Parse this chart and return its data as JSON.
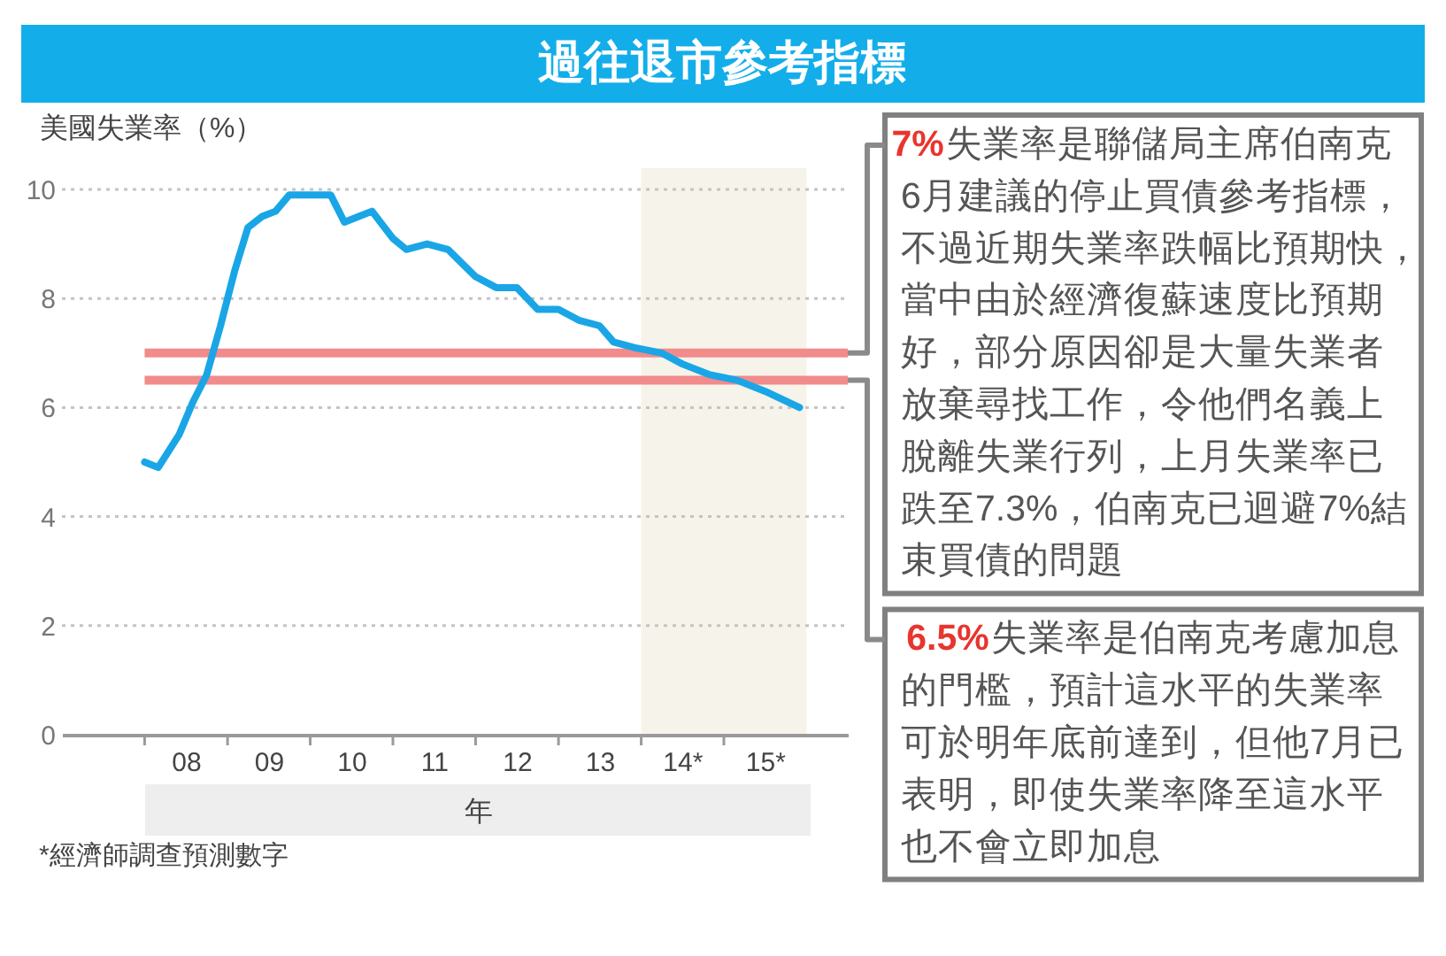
{
  "chart_data": {
    "type": "line",
    "title": "過往退市參考指標",
    "ylabel": "美國失業率（%）",
    "xlabel": "年",
    "x": [
      "2008-01",
      "2008-03",
      "2008-06",
      "2008-08",
      "2008-10",
      "2008-12",
      "2009-02",
      "2009-04",
      "2009-06",
      "2009-08",
      "2009-10",
      "2009-12",
      "2010-04",
      "2010-06",
      "2010-08",
      "2010-10",
      "2011-01",
      "2011-03",
      "2011-06",
      "2011-09",
      "2012-01",
      "2012-04",
      "2012-07",
      "2012-10",
      "2013-01",
      "2013-04",
      "2013-07",
      "2013-09",
      "2013-12",
      "2014-04",
      "2014-07",
      "2014-11",
      "2015-03",
      "2015-07",
      "2015-12"
    ],
    "values": [
      5.0,
      4.9,
      5.5,
      6.1,
      6.6,
      7.5,
      8.5,
      9.3,
      9.5,
      9.6,
      9.9,
      9.9,
      9.9,
      9.4,
      9.5,
      9.6,
      9.1,
      8.9,
      9.0,
      8.9,
      8.4,
      8.2,
      8.2,
      7.8,
      7.8,
      7.6,
      7.5,
      7.2,
      7.1,
      7.0,
      6.8,
      6.6,
      6.5,
      6.3,
      6.0
    ],
    "color": "#1aa6e6",
    "line_style": "solid",
    "xlim": [
      "2007-01",
      "2016-07"
    ],
    "ylim": [
      0,
      10
    ],
    "xticks": [
      {
        "value": "2008-01",
        "label": null
      },
      {
        "value": "2008-07",
        "label": "08"
      },
      {
        "value": "2009-01",
        "label": null
      },
      {
        "value": "2009-07",
        "label": "09"
      },
      {
        "value": "2010-01",
        "label": null
      },
      {
        "value": "2010-07",
        "label": "10"
      },
      {
        "value": "2011-01",
        "label": null
      },
      {
        "value": "2011-07",
        "label": "11"
      },
      {
        "value": "2012-01",
        "label": null
      },
      {
        "value": "2012-07",
        "label": "12"
      },
      {
        "value": "2013-01",
        "label": null
      },
      {
        "value": "2013-07",
        "label": "13"
      },
      {
        "value": "2014-01",
        "label": null
      },
      {
        "value": "2014-07",
        "label": "14*"
      },
      {
        "value": "2015-01",
        "label": null
      },
      {
        "value": "2015-07",
        "label": "15*"
      }
    ],
    "yticks": [
      0,
      2,
      4,
      6,
      8,
      10
    ],
    "grid": "y",
    "bands": [
      {
        "axis": "x",
        "from": "2014-01",
        "to": "2016-01",
        "color": "#f6f3ea"
      }
    ],
    "ref_lines": [
      {
        "axis": "y",
        "value": 7,
        "color": "#f28b8b",
        "label": "7%失業率是聯儲局主席伯南克6月建議的停止買債參考指標，不過近期失業率跌幅比預期快，當中由於經濟復蘇速度比預期好，部分原因卻是大量失業者放棄尋找工作，令他們名義上脫離失業行列，上月失業率已跌至7.3%，伯南克已迴避7%結束買債的問題"
      },
      {
        "axis": "y",
        "value": 6.5,
        "color": "#f28b8b",
        "label": "6.5%失業率是伯南克考慮加息的門檻，預計這水平的失業率可於明年底前達到，但他7月已表明，即使失業率降至這水平也不會立即加息"
      }
    ],
    "annotations": [
      "*經濟師調查預測數字"
    ]
  }
}
